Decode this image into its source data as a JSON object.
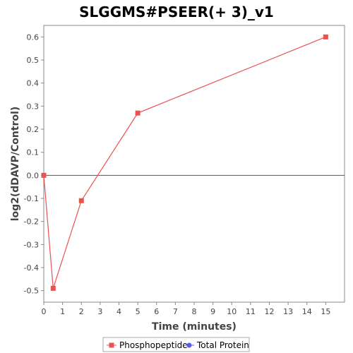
{
  "chart_data": {
    "type": "line",
    "title": "SLGGMS#PSEER(+ 3)_v1",
    "xlabel": "Time (minutes)",
    "ylabel": "log2(dDAVP/Control)",
    "xlim": [
      0,
      16
    ],
    "ylim": [
      -0.55,
      0.65
    ],
    "xticks": [
      0,
      1,
      2,
      3,
      4,
      5,
      6,
      7,
      8,
      9,
      10,
      11,
      12,
      13,
      14,
      15
    ],
    "yticks": [
      -0.5,
      -0.4,
      -0.3,
      -0.2,
      -0.1,
      0.0,
      0.1,
      0.2,
      0.3,
      0.4,
      0.5,
      0.6
    ],
    "ytick_labels": [
      "-0.5",
      "-0.4",
      "-0.3",
      "-0.2",
      "-0.1",
      "0.0",
      "0.1",
      "0.2",
      "0.3",
      "0.4",
      "0.5",
      "0.6"
    ],
    "grid": false,
    "legend_position": "bottom",
    "series": [
      {
        "name": "Phosphopeptide",
        "color": "#e8534f",
        "marker": "square",
        "x": [
          0,
          0.5,
          2,
          5,
          15
        ],
        "y": [
          0.0,
          -0.49,
          -0.11,
          0.27,
          0.6
        ]
      },
      {
        "name": "Total Protein",
        "color": "#5a5ae8",
        "marker": "circle",
        "x": [],
        "y": []
      }
    ]
  }
}
